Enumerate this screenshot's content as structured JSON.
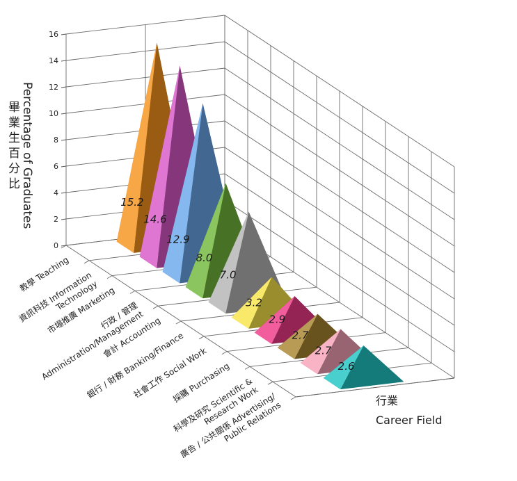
{
  "chart_data": {
    "type": "bar",
    "title": "",
    "ylabel": "Percentage of Graduates",
    "ylabel_zh": "畢業生百分比",
    "xlabel": "Career Field",
    "xlabel_zh": "行業",
    "ylim": [
      0,
      16
    ],
    "yticks": [
      0,
      2,
      4,
      6,
      8,
      10,
      12,
      14,
      16
    ],
    "grid": true,
    "categories": [
      "教學 Teaching",
      "資訊科技 Information Technology",
      "市場推廣 Marketing",
      "行政 / 管理 Administration/Management",
      "會計 Accounting",
      "銀行 / 財務 Banking/Finance",
      "社會工作 Social Work",
      "採購 Purchasing",
      "科學及研究 Scientific & Research Work",
      "廣告 / 公共關係 Advertising/ Public Relations"
    ],
    "category_lines": [
      [
        "教學 Teaching"
      ],
      [
        "資訊科技 Information",
        "Technology"
      ],
      [
        "市場推廣 Marketing"
      ],
      [
        "行政 / 管理",
        "Administration/Management"
      ],
      [
        "會計 Accounting"
      ],
      [
        "銀行 / 財務 Banking/Finance"
      ],
      [
        "社會工作 Social Work"
      ],
      [
        "採購 Purchasing"
      ],
      [
        "科學及研究 Scientific &",
        "Research Work"
      ],
      [
        "廣告 / 公共關係 Advertising/",
        "Public Relations"
      ]
    ],
    "values": [
      15.2,
      14.6,
      12.9,
      8.0,
      7.0,
      3.2,
      2.9,
      2.7,
      2.7,
      2.6
    ],
    "value_labels": [
      "15.2",
      "14.6",
      "12.9",
      "8.0",
      "7.0",
      "3.2",
      "2.9",
      "2.7",
      "2.7",
      "2.6"
    ],
    "colors": [
      "#f7941d",
      "#d858c8",
      "#6aa8ec",
      "#72b83c",
      "#b5b5b5",
      "#f7e44a",
      "#ee3a87",
      "#a88530",
      "#f6a2b8",
      "#22c4c4"
    ]
  }
}
